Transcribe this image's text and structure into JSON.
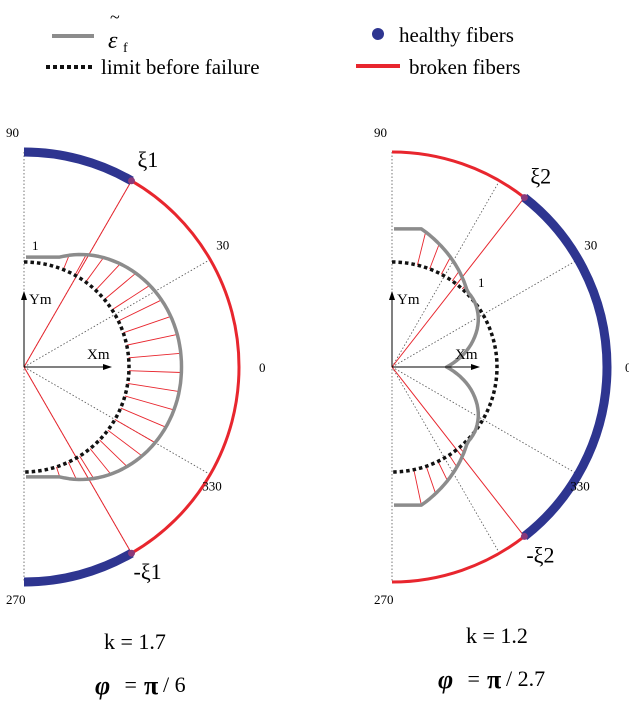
{
  "legend": {
    "strain_label": "ε",
    "strain_sub": "f",
    "strain_tilde": "~",
    "limit_label": "limit before failure",
    "healthy_label": "healthy fibers",
    "broken_label": "broken fibers"
  },
  "colors": {
    "strain_curve": "#8c8c8c",
    "healthy": "#2e3590",
    "broken": "#e8262e",
    "limit": "#111111",
    "grid": "#555555"
  },
  "panels": [
    {
      "id": "left",
      "angle_labels": [
        "90",
        "30",
        "0",
        "330",
        "270"
      ],
      "unit_label": "1",
      "x_axis_label": "Xm",
      "y_axis_label": "Ym",
      "xi_top": "ξ1",
      "xi_bottom": "-ξ1",
      "k_caption": "k = 1.7",
      "phi_symbol": "φ",
      "phi_eq": " = ",
      "pi_symbol": "π",
      "phi_denominator": "/ 6"
    },
    {
      "id": "right",
      "angle_labels": [
        "90",
        "30",
        "0",
        "330",
        "270"
      ],
      "unit_label": "1",
      "x_axis_label": "Xm",
      "y_axis_label": "Ym",
      "xi_top": "ξ2",
      "xi_bottom": "-ξ2",
      "k_caption": "k = 1.2",
      "phi_symbol": "φ",
      "phi_eq": " = ",
      "pi_symbol": "π",
      "phi_denominator": "/ 2.7"
    }
  ]
}
